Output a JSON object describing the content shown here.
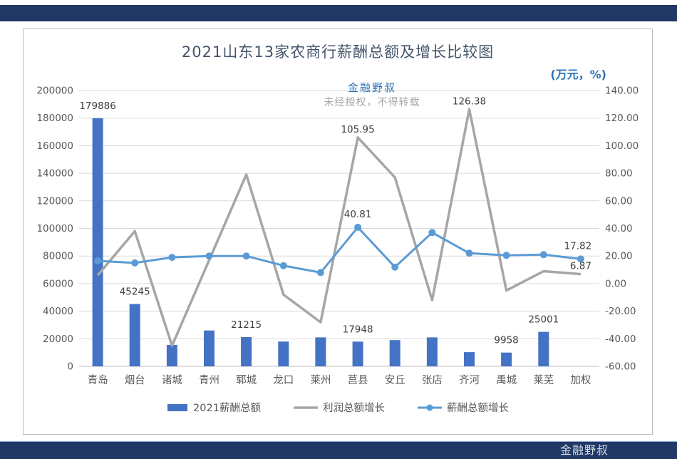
{
  "chart": {
    "title": "2021山东13家农商行薪酬总额及增长比较图",
    "units": "(万元，%)"
  },
  "watermark": {
    "line1": "金融野叔",
    "line2": "未经授权，不得转载"
  },
  "footer": {
    "brand": "金融野叔"
  },
  "chart_data": {
    "type": "bar",
    "subtype": "combo-bar-line-dual-axis",
    "title": "2021山东13家农商行薪酬总额及增长比较图",
    "units_note": "(万元，%)",
    "categories": [
      "青岛",
      "烟台",
      "诸城",
      "青州",
      "郓城",
      "龙口",
      "莱州",
      "莒县",
      "安丘",
      "张店",
      "齐河",
      "禹城",
      "莱芜",
      "加权"
    ],
    "series": [
      {
        "name": "2021薪酬总额",
        "type": "bar",
        "axis": "left",
        "color": "#4472c4",
        "values": [
          179886,
          45245,
          15500,
          26000,
          21215,
          18000,
          21000,
          17948,
          19000,
          21000,
          10300,
          9958,
          25001,
          null
        ],
        "labels": [
          "179886",
          "45245",
          "",
          "",
          "21215",
          "",
          "",
          "17948",
          "",
          "",
          "",
          "9958",
          "25001",
          ""
        ]
      },
      {
        "name": "利润总额增长",
        "type": "line",
        "axis": "right",
        "color": "#a6a6a6",
        "values": [
          6,
          38,
          -45,
          17,
          79,
          -8,
          -28,
          105.95,
          77,
          -12,
          126.38,
          -5,
          9,
          6.87
        ],
        "labels": [
          "",
          "",
          "",
          "",
          "",
          "",
          "",
          "105.95",
          "",
          "",
          "126.38",
          "",
          "",
          "6.87"
        ]
      },
      {
        "name": "薪酬总额增长",
        "type": "line-marker",
        "axis": "right",
        "color": "#5b9bd5",
        "values": [
          16.5,
          15,
          19,
          20,
          20,
          13,
          8,
          40.81,
          12,
          37,
          22,
          20.5,
          21,
          17.82
        ],
        "labels": [
          "",
          "",
          "",
          "",
          "",
          "",
          "",
          "40.81",
          "",
          "",
          "",
          "",
          "",
          "17.82"
        ]
      }
    ],
    "left_axis": {
      "min": 0,
      "max": 200000,
      "ticks": [
        "200000",
        "180000",
        "160000",
        "140000",
        "120000",
        "100000",
        "80000",
        "60000",
        "40000",
        "20000",
        "0"
      ]
    },
    "right_axis": {
      "min": -60,
      "max": 140,
      "ticks": [
        "140.00",
        "120.00",
        "100.00",
        "80.00",
        "60.00",
        "40.00",
        "20.00",
        "0.00",
        "-20.00",
        "-40.00",
        "-60.00"
      ]
    },
    "legend": [
      "2021薪酬总额",
      "利润总额增长",
      "薪酬总额增长"
    ],
    "legend_position": "bottom",
    "grid": "horizontal"
  }
}
